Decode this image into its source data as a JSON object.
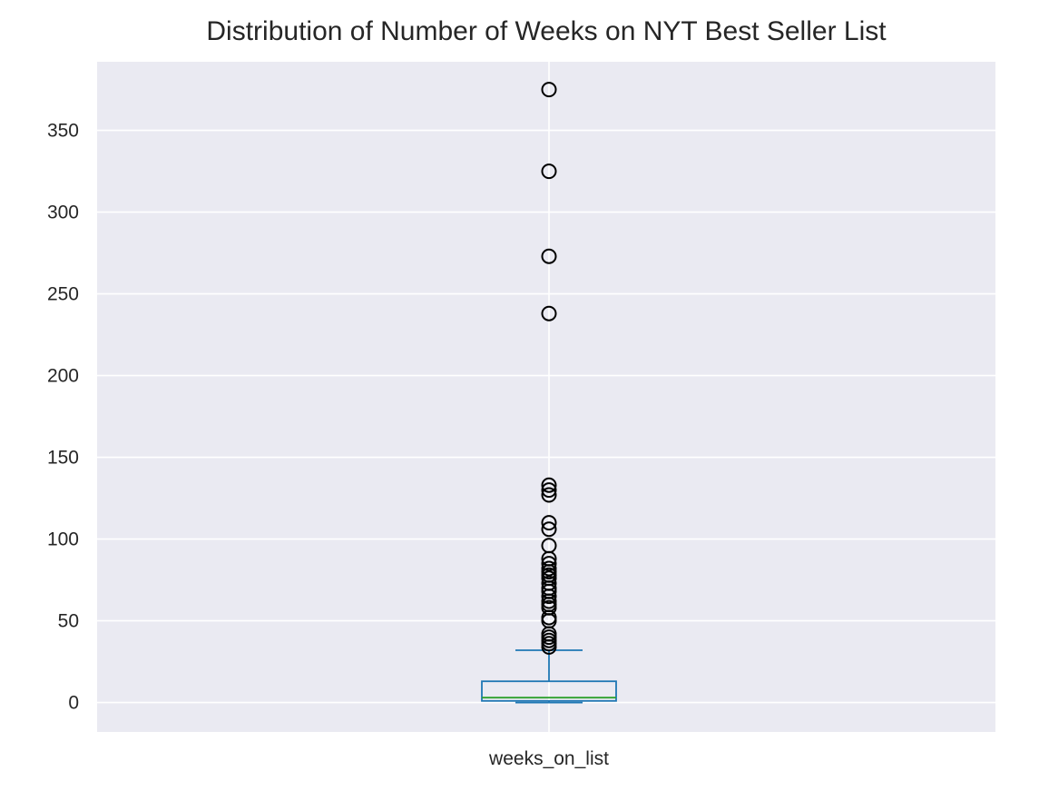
{
  "chart_data": {
    "type": "box",
    "title": "Distribution of Number of Weeks on NYT Best Seller List",
    "categories": [
      "weeks_on_list"
    ],
    "xlabel": "",
    "ylabel": "",
    "ylim": [
      -18,
      392
    ],
    "yticks": [
      0,
      50,
      100,
      150,
      200,
      250,
      300,
      350
    ],
    "grid": true,
    "box": {
      "whisker_low": 0,
      "q1": 1,
      "median": 3,
      "q3": 13,
      "whisker_high": 32
    },
    "outliers": [
      375,
      325,
      273,
      238,
      133,
      130,
      127,
      110,
      106,
      96,
      88,
      85,
      82,
      80,
      78,
      76,
      73,
      70,
      68,
      65,
      62,
      60,
      58,
      52,
      50,
      42,
      40,
      38,
      36,
      34
    ],
    "colors": {
      "background": "#eaeaf2",
      "grid": "#ffffff",
      "box": "#1f77b4",
      "median": "#2ca02c",
      "outlier": "#000000"
    }
  }
}
